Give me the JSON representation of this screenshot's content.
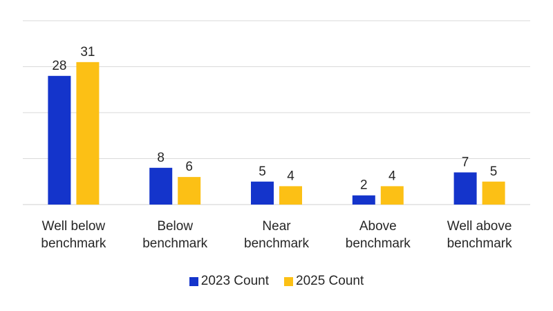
{
  "chart_data": {
    "type": "bar",
    "categories": [
      [
        "Well below",
        "benchmark"
      ],
      [
        "Below",
        "benchmark"
      ],
      [
        "Near",
        "benchmark"
      ],
      [
        "Above",
        "benchmark"
      ],
      [
        "Well above",
        "benchmark"
      ]
    ],
    "series": [
      {
        "name": "2023 Count",
        "values": [
          28,
          8,
          5,
          2,
          7
        ],
        "color": "#1434CB"
      },
      {
        "name": "2025 Count",
        "values": [
          31,
          6,
          4,
          4,
          5
        ],
        "color": "#FCC015"
      }
    ],
    "ylim": [
      0,
      40
    ],
    "grid": true,
    "legend_position": "bottom"
  },
  "legend": {
    "series_0": "2023 Count",
    "series_1": "2025 Count"
  }
}
